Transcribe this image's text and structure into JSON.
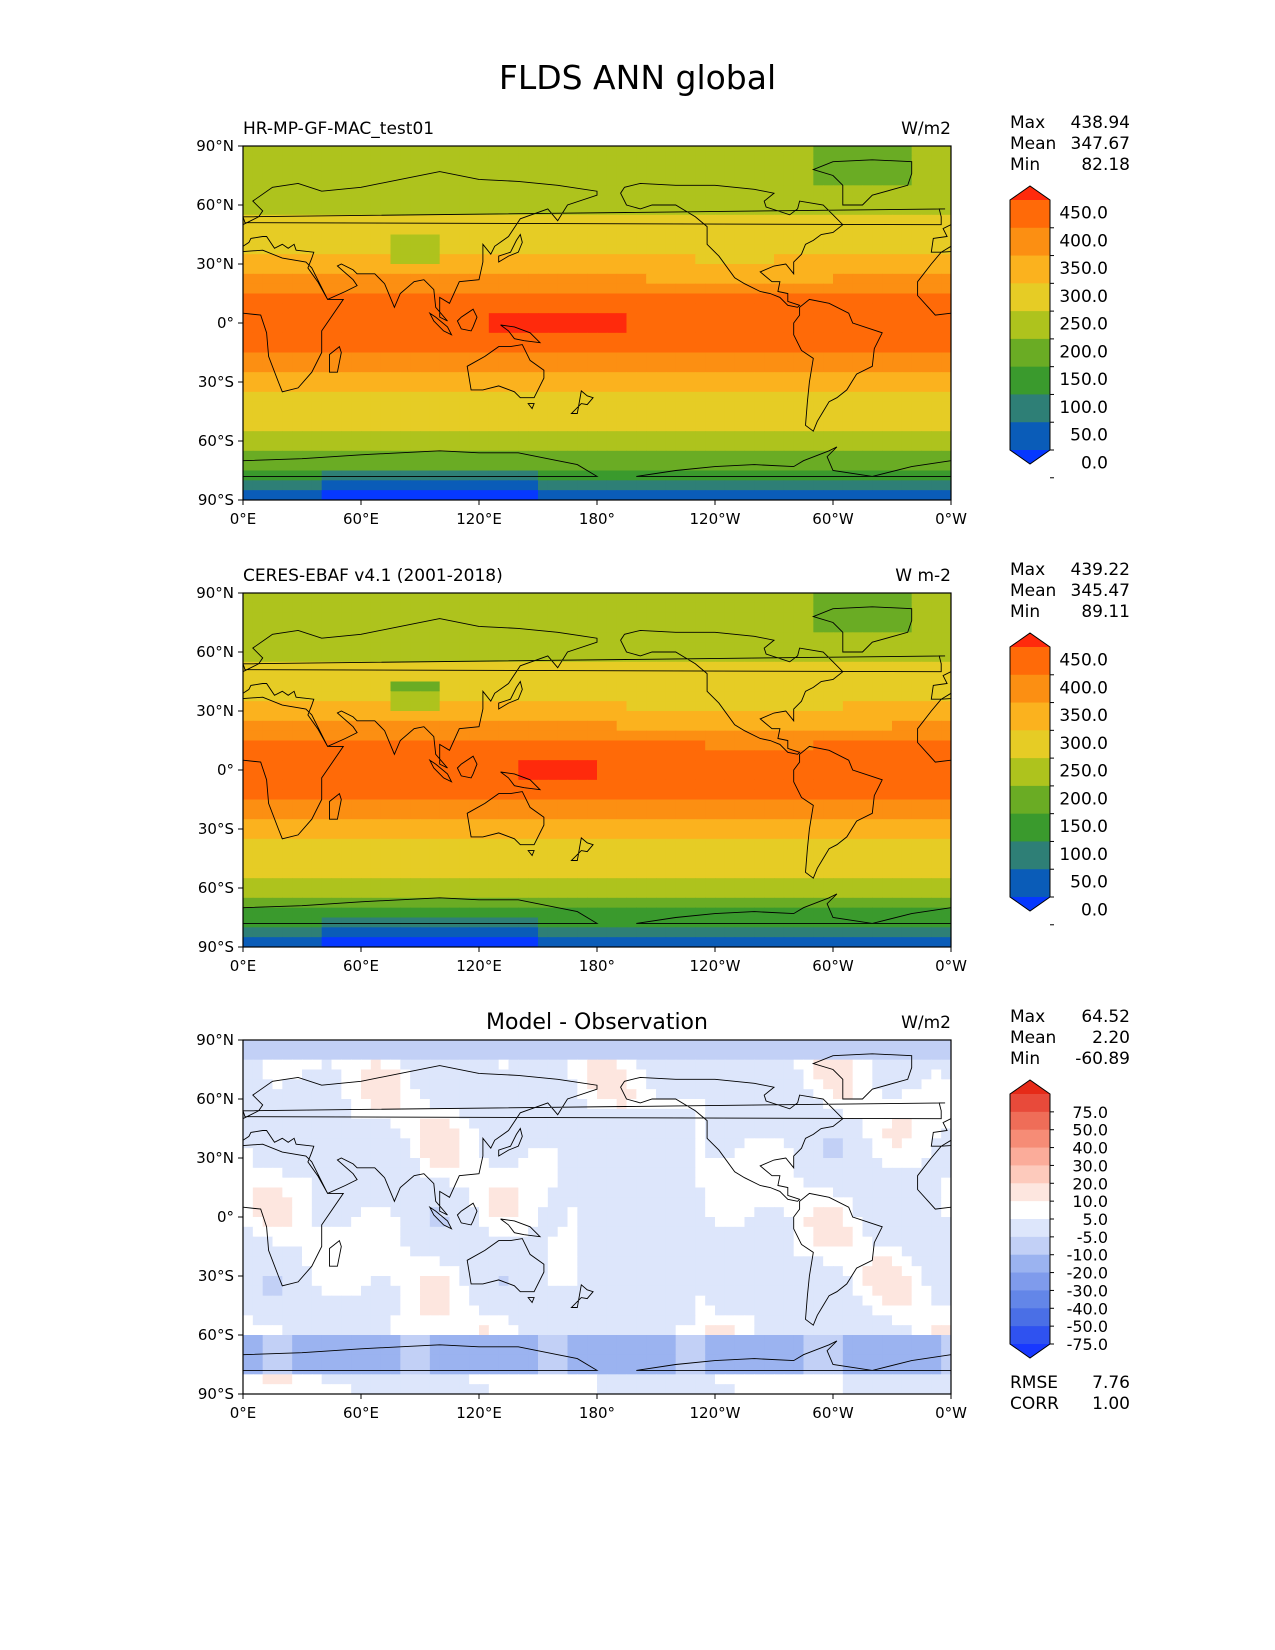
{
  "page": {
    "title": "FLDS ANN global"
  },
  "axes_ticks": {
    "lat": [
      "90°N",
      "60°N",
      "30°N",
      "0°",
      "30°S",
      "60°S",
      "90°S"
    ],
    "lon": [
      "0°E",
      "60°E",
      "120°E",
      "180°",
      "120°W",
      "60°W",
      "0°W"
    ]
  },
  "colors": {
    "main_levels": [
      "#0638ff",
      "#0a5cb8",
      "#2e7f76",
      "#3a9a2d",
      "#6aac24",
      "#aec31d",
      "#e6cc25",
      "#fbb21e",
      "#fc8f12",
      "#ff6a08",
      "#ff2a0c"
    ],
    "diff_levels": [
      "#1838ff",
      "#2f52f0",
      "#4a6fe6",
      "#6386e8",
      "#7f9bec",
      "#9bb3f0",
      "#c2d0f6",
      "#dde6fb",
      "#ffffff",
      "#fde6df",
      "#fdcabc",
      "#fbac9a",
      "#f68c76",
      "#ef6d58",
      "#e84a3a",
      "#e62a18"
    ],
    "land_outline": "#000000"
  },
  "chart_data": [
    {
      "type": "heatmap",
      "title": "HR-MP-GF-MAC_test01",
      "units": "W/m2",
      "stats": [
        {
          "label": "Max",
          "value": "438.94"
        },
        {
          "label": "Mean",
          "value": "347.67"
        },
        {
          "label": "Min",
          "value": "82.18"
        }
      ],
      "colorbar": {
        "labels": [
          "450.0",
          "400.0",
          "350.0",
          "300.0",
          "250.0",
          "200.0",
          "150.0",
          "100.0",
          "50.0",
          "0.0"
        ],
        "extend": "both"
      },
      "x": {
        "range": [
          0,
          360
        ]
      },
      "y": {
        "range": [
          -90,
          90
        ]
      }
    },
    {
      "type": "heatmap",
      "title": "CERES-EBAF v4.1 (2001-2018)",
      "units": "W m-2",
      "stats": [
        {
          "label": "Max",
          "value": "439.22"
        },
        {
          "label": "Mean",
          "value": "345.47"
        },
        {
          "label": "Min",
          "value": "89.11"
        }
      ],
      "colorbar": {
        "labels": [
          "450.0",
          "400.0",
          "350.0",
          "300.0",
          "250.0",
          "200.0",
          "150.0",
          "100.0",
          "50.0",
          "0.0"
        ],
        "extend": "both"
      },
      "x": {
        "range": [
          0,
          360
        ]
      },
      "y": {
        "range": [
          -90,
          90
        ]
      }
    },
    {
      "type": "heatmap",
      "title": "Model - Observation",
      "units": "W/m2",
      "stats": [
        {
          "label": "Max",
          "value": "64.52"
        },
        {
          "label": "Mean",
          "value": "2.20"
        },
        {
          "label": "Min",
          "value": "-60.89"
        }
      ],
      "extra_stats": [
        {
          "label": "RMSE",
          "value": "7.76"
        },
        {
          "label": "CORR",
          "value": "1.00"
        }
      ],
      "colorbar": {
        "labels": [
          "75.0",
          "50.0",
          "40.0",
          "30.0",
          "20.0",
          "10.0",
          "5.0",
          "-5.0",
          "-10.0",
          "-20.0",
          "-30.0",
          "-40.0",
          "-50.0",
          "-75.0"
        ],
        "extend": "both"
      },
      "x": {
        "range": [
          0,
          360
        ]
      },
      "y": {
        "range": [
          -90,
          90
        ]
      }
    }
  ]
}
